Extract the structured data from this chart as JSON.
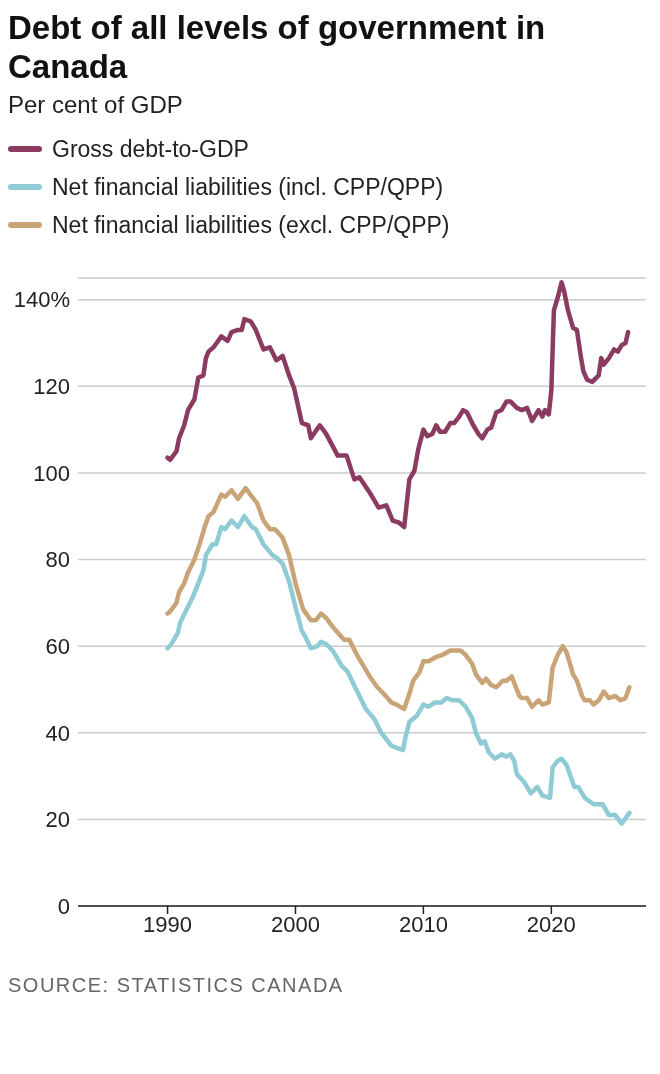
{
  "chart_data": {
    "type": "line",
    "title": "Debt of all levels of government in Canada",
    "subtitle": "Per cent of GDP",
    "legend": "top",
    "grid": "y",
    "marker": "none",
    "line_style": "solid",
    "xlim": [
      1983,
      2027.4
    ],
    "xticks": [
      1990,
      2000,
      2010,
      2020
    ],
    "ylim": [
      0,
      145
    ],
    "yticks": [
      0,
      20,
      40,
      60,
      80,
      100,
      120,
      {
        "value": 140,
        "label": "140%"
      }
    ],
    "annotations": [
      "SOURCE: STATISTICS CANADA"
    ],
    "series": [
      {
        "name": "Gross debt-to-GDP",
        "color": "#8a3b5f",
        "x": [
          1990.0,
          1990.2,
          1990.7,
          1990.9,
          1991.3,
          1991.6,
          1992.1,
          1992.4,
          1992.8,
          1993.0,
          1993.2,
          1993.6,
          1994.2,
          1994.7,
          1995.0,
          1995.5,
          1995.8,
          1996.0,
          1996.5,
          1996.9,
          1997.5,
          1998.0,
          1998.5,
          1999.0,
          1999.5,
          1999.9,
          2000.5,
          2001.0,
          2001.2,
          2001.9,
          2002.4,
          2003.3,
          2004.0,
          2004.6,
          2005.0,
          2005.9,
          2006.5,
          2007.1,
          2007.6,
          2008.1,
          2008.5,
          2008.9,
          2009.3,
          2009.6,
          2010.0,
          2010.3,
          2010.7,
          2011.0,
          2011.3,
          2011.7,
          2012.1,
          2012.4,
          2012.8,
          2013.1,
          2013.4,
          2013.9,
          2014.3,
          2014.6,
          2015.0,
          2015.3,
          2015.7,
          2016.1,
          2016.5,
          2016.8,
          2017.3,
          2017.7,
          2018.1,
          2018.5,
          2019.0,
          2019.3,
          2019.5,
          2019.8,
          2020.0,
          2020.2,
          2020.5,
          2020.8,
          2021.0,
          2021.3,
          2021.7,
          2022.0,
          2022.3,
          2022.5,
          2022.8,
          2023.2,
          2023.7,
          2023.9,
          2024.1,
          2024.5,
          2024.9,
          2025.2,
          2025.5,
          2025.8,
          2026.0
        ],
        "values": [
          103.5,
          103,
          105,
          108,
          111,
          114.5,
          117,
          122,
          122.5,
          126.5,
          128,
          129,
          131.5,
          130.5,
          132.5,
          133,
          133,
          135.5,
          135,
          133,
          128.5,
          129,
          126,
          127,
          122.5,
          119.5,
          111.5,
          111,
          108,
          111,
          109,
          104,
          104,
          98.5,
          99,
          95,
          92,
          92.5,
          89,
          88.5,
          87.5,
          98.5,
          100.5,
          105.5,
          110,
          108.5,
          109,
          111,
          109.5,
          109.5,
          111.5,
          111.5,
          113,
          114.5,
          114,
          111,
          109,
          108,
          110,
          110.5,
          114,
          114.5,
          116.5,
          116.5,
          115,
          114.5,
          115,
          112,
          114.5,
          113,
          114.5,
          113.5,
          119,
          137.5,
          140.5,
          144,
          142,
          137.5,
          133.5,
          133,
          127,
          123.5,
          121.5,
          121,
          122.5,
          126.5,
          125,
          126.5,
          128.5,
          128,
          129.5,
          130,
          132.5
        ]
      },
      {
        "name": "Net financial liabilities (incl. CPP/QPP)",
        "color": "#8fcbd4",
        "x": [
          1990.0,
          1990.3,
          1990.8,
          1991.0,
          1991.5,
          1992.0,
          1992.4,
          1992.8,
          1993.0,
          1993.5,
          1993.8,
          1994.2,
          1994.5,
          1995.0,
          1995.5,
          1996.0,
          1996.6,
          1996.9,
          1997.5,
          1998.2,
          1998.5,
          1999.0,
          1999.5,
          2000.0,
          2000.5,
          2000.8,
          2001.2,
          2001.7,
          2002.0,
          2002.4,
          2002.9,
          2003.6,
          2004.1,
          2004.5,
          2005.0,
          2005.5,
          2006.2,
          2006.7,
          2007.5,
          2007.9,
          2008.4,
          2008.6,
          2008.9,
          2009.5,
          2010.0,
          2010.4,
          2010.9,
          2011.4,
          2011.8,
          2012.3,
          2012.8,
          2013.3,
          2013.8,
          2014.1,
          2014.5,
          2014.8,
          2015.1,
          2015.6,
          2016.1,
          2016.5,
          2016.8,
          2017.1,
          2017.3,
          2017.9,
          2018.4,
          2018.9,
          2019.3,
          2019.9,
          2020.1,
          2020.5,
          2020.8,
          2021.2,
          2021.8,
          2022.1,
          2022.6,
          2023.3,
          2024.0,
          2024.5,
          2025.0,
          2025.5,
          2026.1
        ],
        "values": [
          59.5,
          60.5,
          63,
          65.5,
          68.5,
          71.5,
          74.5,
          77.5,
          81,
          83.5,
          83.5,
          87.5,
          87,
          89,
          87.5,
          90,
          87.5,
          87,
          83.5,
          81,
          80.5,
          79,
          75,
          69,
          63.5,
          62,
          59.5,
          60,
          61,
          60.5,
          59,
          55.5,
          54,
          51.5,
          48.5,
          45.5,
          43,
          40,
          37,
          36.5,
          36,
          39,
          42.5,
          44,
          46.5,
          46,
          47,
          47,
          48,
          47.5,
          47.5,
          46,
          43.5,
          40,
          37.5,
          38,
          35.5,
          34,
          35,
          34.5,
          35,
          33.5,
          30.5,
          28.5,
          26,
          27.5,
          25.5,
          25,
          32,
          33.5,
          34,
          32.5,
          27.5,
          27.5,
          25,
          23.5,
          23.5,
          21,
          21,
          19,
          21.5
        ]
      },
      {
        "name": "Net financial liabilities (excl. CPP/QPP)",
        "color": "#c8a476",
        "x": [
          1990.0,
          1990.2,
          1990.7,
          1990.9,
          1991.3,
          1991.6,
          1992.1,
          1992.5,
          1992.9,
          1993.2,
          1993.6,
          1994.2,
          1994.5,
          1995.0,
          1995.5,
          1996.1,
          1996.6,
          1997.0,
          1997.5,
          1998.0,
          1998.4,
          1999.0,
          1999.5,
          2000.0,
          2000.6,
          2001.2,
          2001.6,
          2002.0,
          2002.4,
          2002.9,
          2003.8,
          2004.2,
          2004.8,
          2005.2,
          2005.8,
          2006.4,
          2006.9,
          2007.5,
          2007.9,
          2008.5,
          2008.9,
          2009.2,
          2009.7,
          2010.0,
          2010.4,
          2011.0,
          2011.5,
          2012.1,
          2012.6,
          2012.9,
          2013.3,
          2013.8,
          2014.1,
          2014.6,
          2014.9,
          2015.3,
          2015.7,
          2016.2,
          2016.5,
          2016.9,
          2017.1,
          2017.5,
          2017.7,
          2018.1,
          2018.5,
          2019.0,
          2019.3,
          2019.8,
          2020.1,
          2020.5,
          2020.9,
          2021.2,
          2021.7,
          2022.0,
          2022.4,
          2022.6,
          2023.0,
          2023.3,
          2023.7,
          2024.1,
          2024.5,
          2025.0,
          2025.4,
          2025.8,
          2026.1
        ],
        "values": [
          67.5,
          68,
          70,
          72.5,
          74.5,
          77,
          80,
          83.5,
          87.5,
          90,
          91,
          95,
          94.5,
          96,
          94,
          96.5,
          94.5,
          93,
          89,
          87,
          87,
          85,
          81,
          74.5,
          68.5,
          66,
          66,
          67.5,
          66.5,
          64.5,
          61.5,
          61.5,
          58,
          56,
          53,
          50.5,
          49,
          47,
          46.5,
          45.5,
          49,
          52,
          54,
          56.5,
          56.5,
          57.5,
          58,
          59,
          59,
          59,
          58,
          56,
          53.5,
          51.5,
          52.5,
          51,
          50.5,
          52,
          52,
          53,
          51.5,
          48.5,
          48,
          48,
          46,
          47.5,
          46.5,
          47,
          55,
          58,
          60,
          58.5,
          53.5,
          52,
          48.5,
          47.5,
          47.5,
          46.5,
          47.5,
          49.5,
          48,
          48.5,
          47.5,
          48,
          50.5
        ]
      }
    ]
  }
}
